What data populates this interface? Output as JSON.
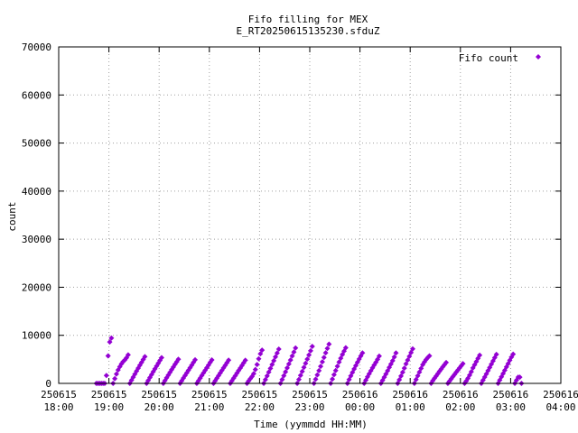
{
  "chart_data": {
    "type": "scatter",
    "title": "Fifo filling for MEX",
    "subtitle": "E_RT20250615135230.sfduZ",
    "xlabel": "Time (yymmdd HH:MM)",
    "ylabel": "count",
    "legend_position": "top-right",
    "grid": true,
    "x_range": [
      "2025-06-15 18:00",
      "2025-06-16 04:00"
    ],
    "ylim": [
      0,
      70000
    ],
    "x_ticks": [
      {
        "date": "250615",
        "time": "18:00"
      },
      {
        "date": "250615",
        "time": "19:00"
      },
      {
        "date": "250615",
        "time": "20:00"
      },
      {
        "date": "250615",
        "time": "21:00"
      },
      {
        "date": "250615",
        "time": "22:00"
      },
      {
        "date": "250615",
        "time": "23:00"
      },
      {
        "date": "250616",
        "time": "00:00"
      },
      {
        "date": "250616",
        "time": "01:00"
      },
      {
        "date": "250616",
        "time": "02:00"
      },
      {
        "date": "250616",
        "time": "03:00"
      },
      {
        "date": "250616",
        "time": "04:00"
      }
    ],
    "y_ticks": [
      "0",
      "10000",
      "20000",
      "30000",
      "40000",
      "50000",
      "60000",
      "70000"
    ],
    "series": [
      {
        "name": "Fifo count",
        "color": "#9400d3",
        "marker": "diamond",
        "step_minutes": 2,
        "x_start": "2025-06-15 18:45",
        "x_end": "2025-06-16 03:13",
        "envelope": [
          [
            "2025-06-15 18:45",
            0
          ],
          [
            "2025-06-15 18:56",
            0
          ],
          [
            "2025-06-15 19:00",
            9800
          ],
          [
            "2025-06-15 19:10",
            8600
          ],
          [
            "2025-06-15 19:20",
            6000
          ],
          [
            "2025-06-15 19:40",
            5600
          ],
          [
            "2025-06-15 20:00",
            5400
          ],
          [
            "2025-06-15 20:30",
            4900
          ],
          [
            "2025-06-15 21:00",
            4900
          ],
          [
            "2025-06-15 21:30",
            4800
          ],
          [
            "2025-06-15 21:45",
            4800
          ],
          [
            "2025-06-15 21:52",
            4200
          ],
          [
            "2025-06-15 22:00",
            6900
          ],
          [
            "2025-06-15 22:30",
            7200
          ],
          [
            "2025-06-15 23:00",
            7600
          ],
          [
            "2025-06-15 23:20",
            8200
          ],
          [
            "2025-06-15 23:35",
            8000
          ],
          [
            "2025-06-15 23:50",
            6900
          ],
          [
            "2025-06-16 00:20",
            5600
          ],
          [
            "2025-06-16 00:40",
            6100
          ],
          [
            "2025-06-16 00:55",
            7300
          ],
          [
            "2025-06-16 01:15",
            7000
          ],
          [
            "2025-06-16 01:30",
            4600
          ],
          [
            "2025-06-16 01:50",
            4200
          ],
          [
            "2025-06-16 02:05",
            4100
          ],
          [
            "2025-06-16 02:15",
            5800
          ],
          [
            "2025-06-16 02:40",
            6000
          ],
          [
            "2025-06-16 03:00",
            6200
          ],
          [
            "2025-06-16 03:10",
            5800
          ],
          [
            "2025-06-16 03:13",
            0
          ]
        ]
      }
    ]
  }
}
